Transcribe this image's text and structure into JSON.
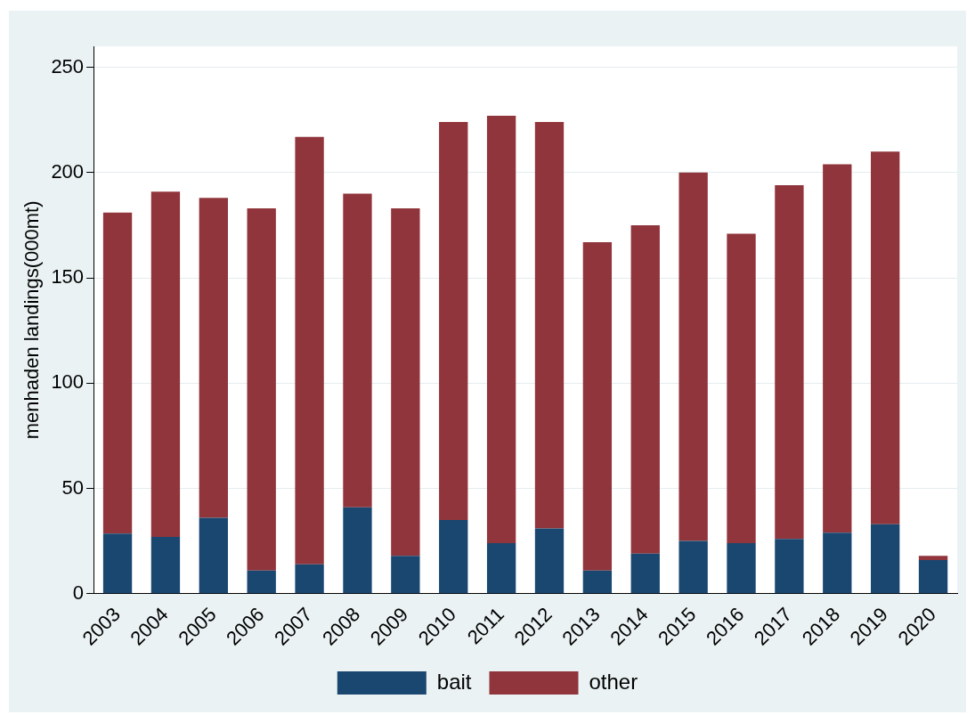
{
  "chart_data": {
    "type": "bar",
    "stacked": true,
    "ylabel": "menhaden landings(000mt)",
    "categories": [
      "2003",
      "2004",
      "2005",
      "2006",
      "2007",
      "2008",
      "2009",
      "2010",
      "2011",
      "2012",
      "2013",
      "2014",
      "2015",
      "2016",
      "2017",
      "2018",
      "2019",
      "2020"
    ],
    "series": [
      {
        "name": "bait",
        "color": "#1a476f",
        "values": [
          28.5,
          27,
          36,
          11,
          14,
          41,
          18,
          35,
          24,
          31,
          11,
          19,
          25,
          24,
          26,
          29,
          33,
          16
        ]
      },
      {
        "name": "other",
        "color": "#90353b",
        "values": [
          152.5,
          164,
          152,
          172,
          203,
          149,
          165,
          189,
          203,
          193,
          156,
          156,
          175,
          147,
          168,
          175,
          177,
          2
        ]
      }
    ],
    "ylim": [
      0,
      260
    ],
    "yticks": [
      0,
      50,
      100,
      150,
      200,
      250
    ],
    "grid": "y",
    "legend": "bottom"
  }
}
